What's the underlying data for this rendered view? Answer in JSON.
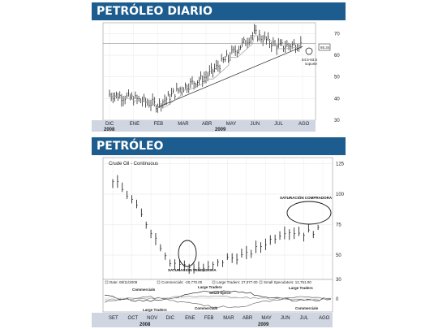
{
  "panel1": {
    "banner": "PETRÓLEO DIARIO",
    "last_value_label": "65.34",
    "support_line1": "64.5-63.5",
    "support_line2": "soporte",
    "y_ticks": [
      "70",
      "60",
      "50",
      "40",
      "30"
    ],
    "x_months": [
      "DIC",
      "ENE",
      "FEB",
      "MAR",
      "ABR",
      "MAY",
      "JUN",
      "JUL",
      "AGO"
    ],
    "years": [
      "2008",
      "2009"
    ],
    "chart_data": {
      "type": "ohlc",
      "title": "",
      "ylim": [
        30,
        75
      ],
      "x": [
        "DIC",
        "ENE",
        "FEB",
        "MAR",
        "ABR",
        "MAY",
        "JUN",
        "JUL",
        "AGO"
      ],
      "close": [
        42,
        40,
        37,
        45,
        50,
        60,
        70,
        64,
        65.3
      ],
      "trendline": {
        "start": [
          "FEB",
          36
        ],
        "end": [
          "AGO",
          64
        ]
      },
      "moving_average": true,
      "horizontal_reference": 65.34
    }
  },
  "panel2": {
    "banner": "PETRÓLEO",
    "chart_title": "Crude Oil - Continuous",
    "y_ticks": [
      "125",
      "100",
      "75",
      "50",
      "30"
    ],
    "annotation_sell": "SATURACIÓN VENDEDORA",
    "annotation_buy": "SATURACIÓN COMPRADORA",
    "indicator_header": [
      "Date: 08/11/2009",
      "Commercials: -20,770.00",
      "Large Traders: 27,077.00",
      "Small Speculators: 12,751.00"
    ],
    "indicator_labels": {
      "commercials_top": "Commercials",
      "large_traders_top": "Large Traders",
      "small_specs": "Small Specs",
      "large_traders_top2": "Large Traders",
      "large_traders_bottom": "Large Traders",
      "commercials_bottom": "Commercials",
      "commercials_bottom2": "Commercials"
    },
    "indicator_ticks": [
      "0"
    ],
    "x_months": [
      "SET",
      "OCT",
      "NOV",
      "DIC",
      "ENE",
      "FEB",
      "MAR",
      "ABR",
      "MAY",
      "JUN",
      "JUL",
      "AGO"
    ],
    "years": [
      "2008",
      "2009"
    ],
    "chart_data": {
      "type": "ohlc",
      "title": "Crude Oil - Continuous",
      "ylim": [
        30,
        130
      ],
      "x": [
        "SET",
        "OCT",
        "NOV",
        "DIC",
        "ENE",
        "FEB",
        "MAR",
        "ABR",
        "MAY",
        "JUN",
        "JUL",
        "AGO"
      ],
      "close": [
        112,
        95,
        70,
        45,
        40,
        39,
        47,
        50,
        60,
        70,
        68,
        71
      ]
    }
  },
  "colors": {
    "banner": "#1c5c8e",
    "bar": "#111111",
    "grid": "#dddddd",
    "axis_band": "#cfd6e2"
  }
}
